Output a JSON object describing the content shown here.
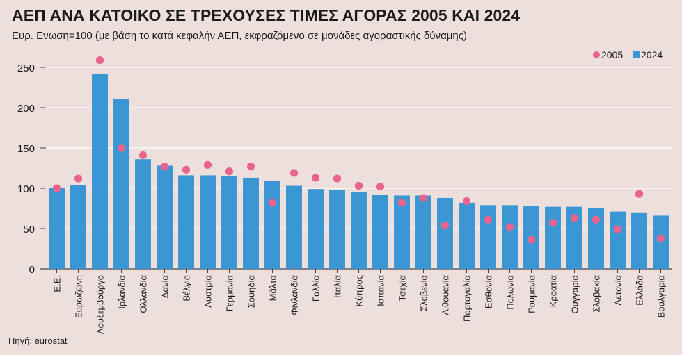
{
  "chart_data": {
    "type": "bar",
    "title": "ΑΕΠ ΑΝΑ ΚΑΤΟΙΚΟ ΣΕ ΤΡΕΧΟΥΣΕΣ ΤΙΜΕΣ ΑΓΟΡΑΣ 2005 ΚΑΙ 2024",
    "subtitle": "Ευρ. Ενωση=100 (με βάση το κατά κεφαλήν ΑΕΠ, εκφραζόμενο σε μονάδες αγοραστικής δύναμης)",
    "source": "Πηγή: eurostat",
    "xlabel": "",
    "ylabel": "",
    "ylim": [
      0,
      260
    ],
    "yticks": [
      0,
      50,
      100,
      150,
      200,
      250
    ],
    "grid": true,
    "legend_position": "top-right",
    "categories": [
      "Ε.Ε.",
      "Ευρωζώνη",
      "Λουξεμβούργο",
      "Ιρλανδία",
      "Ολλανδία",
      "Δανία",
      "Βέλγιο",
      "Αυστρία",
      "Γερμανία",
      "Σουηδία",
      "Μάλτα",
      "Φινλανδία",
      "Γαλλία",
      "Ιταλία",
      "Κύπρος",
      "Ισπανία",
      "Τσεχία",
      "Σλοβενία",
      "Λιθουανία",
      "Πορτογαλία",
      "Εσθονία",
      "Πολωνία",
      "Ρουμανία",
      "Κροατία",
      "Ουγγαρία",
      "Σλοβακία",
      "Λετονία",
      "Ελλάδα",
      "Βουλγαρία"
    ],
    "series": [
      {
        "name": "2024",
        "kind": "bar",
        "color": "#3A97D4",
        "values": [
          100,
          104,
          242,
          211,
          136,
          128,
          116,
          116,
          115,
          113,
          109,
          103,
          99,
          98,
          95,
          92,
          91,
          91,
          88,
          82,
          79,
          79,
          78,
          77,
          77,
          75,
          71,
          70,
          66
        ]
      },
      {
        "name": "2005",
        "kind": "dot",
        "color": "#E8648E",
        "values": [
          100,
          112,
          259,
          150,
          141,
          127,
          123,
          129,
          121,
          127,
          82,
          119,
          113,
          112,
          103,
          102,
          82,
          88,
          54,
          84,
          61,
          52,
          36,
          57,
          63,
          61,
          49,
          93,
          38
        ]
      }
    ]
  },
  "colors": {
    "background": "#ECDFDC",
    "grid": "#FFFFFF",
    "axis": "#444444"
  }
}
